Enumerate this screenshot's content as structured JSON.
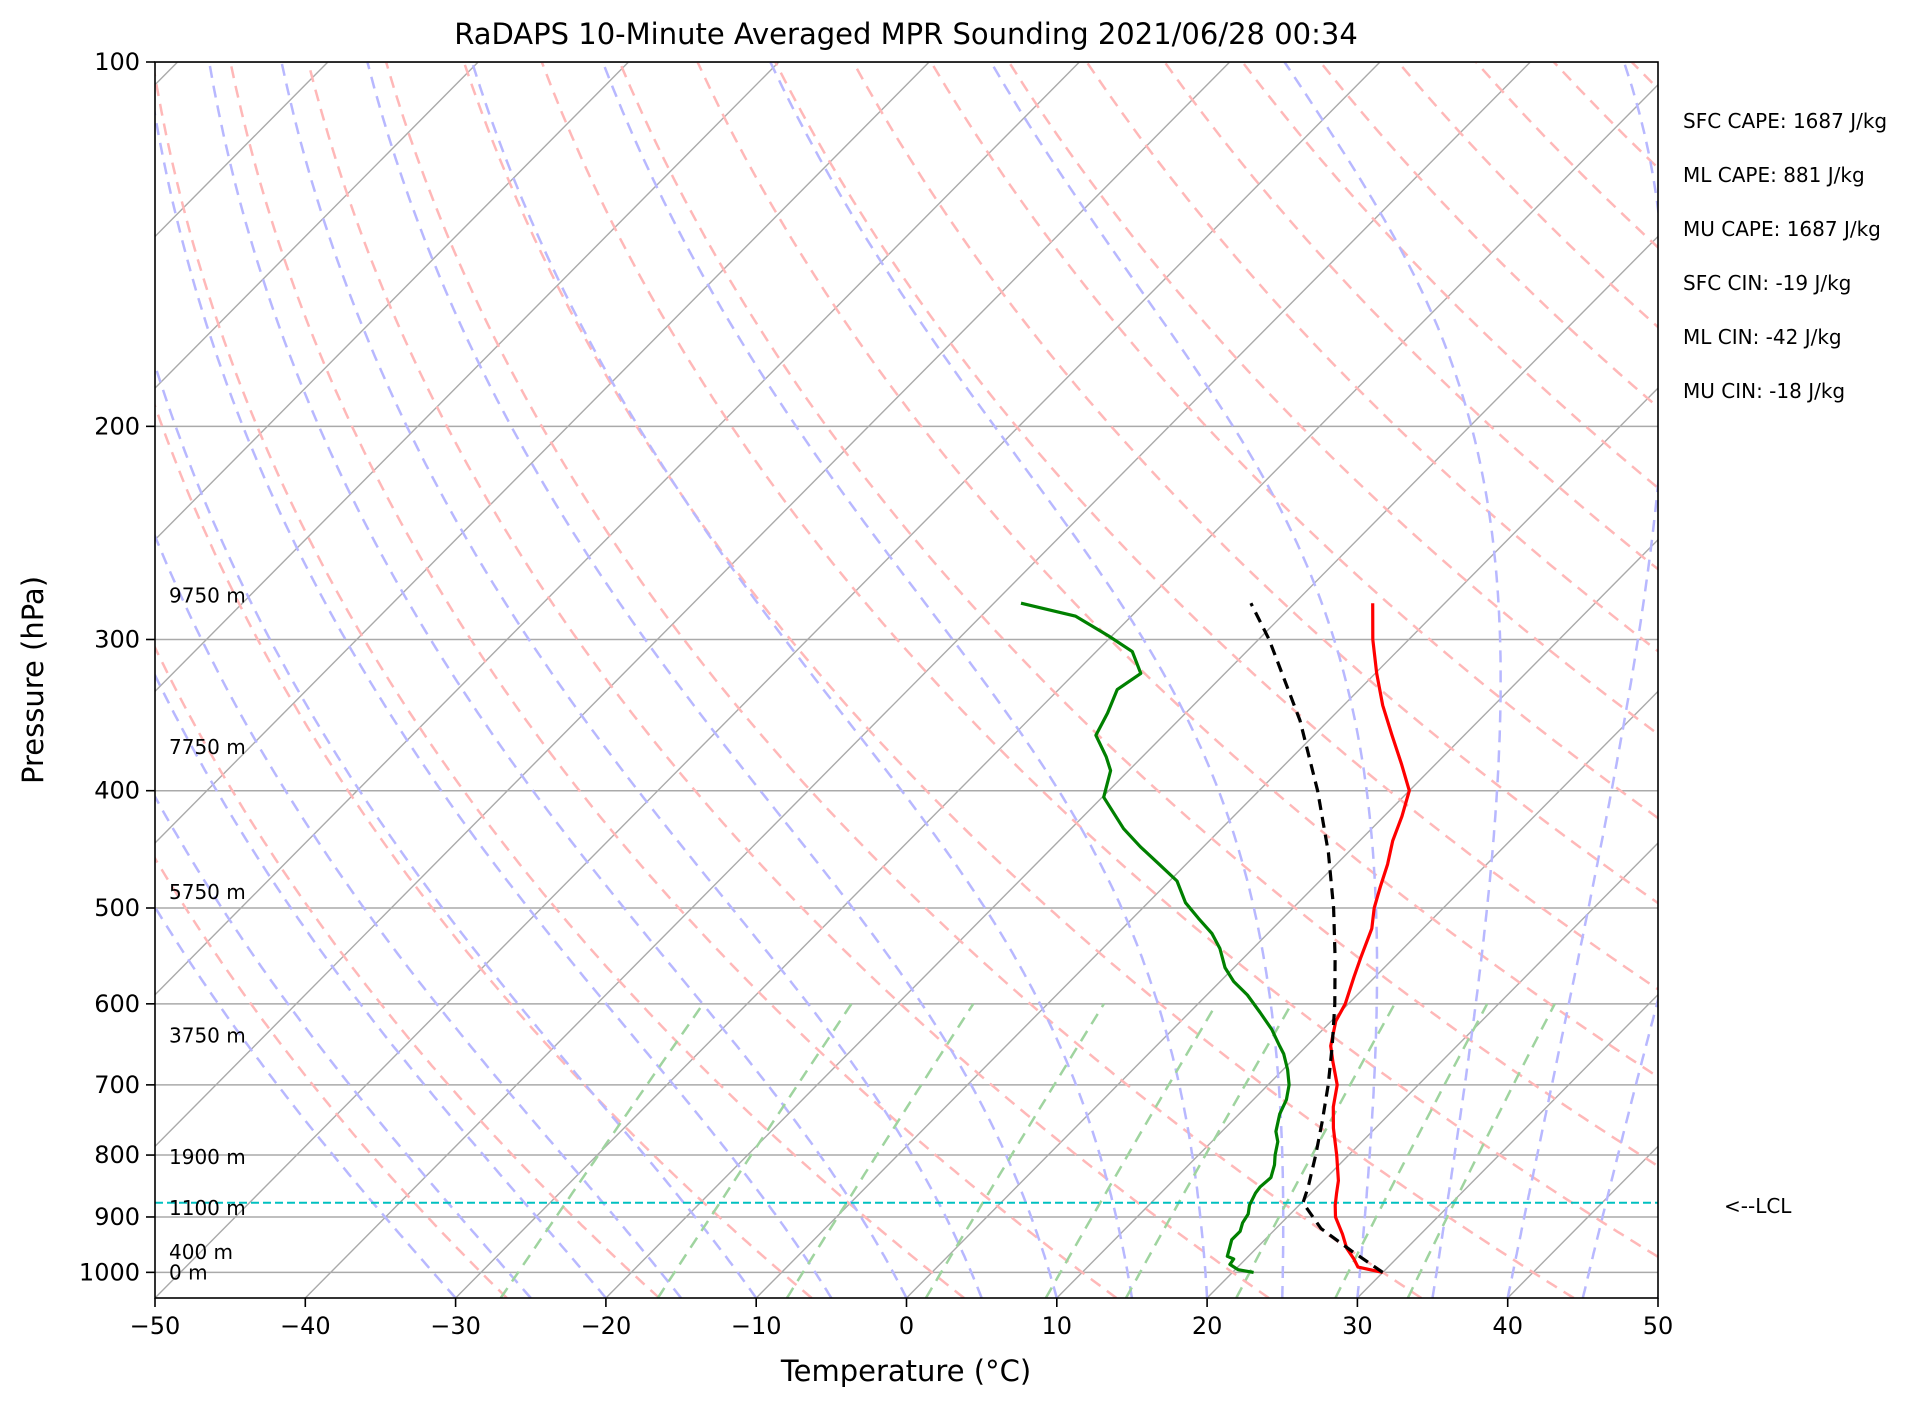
{
  "chart_data": {
    "type": "skew-t",
    "title": "RaDAPS 10-Minute Averaged MPR Sounding 2021/06/28 00:34",
    "xlabel": "Temperature (°C)",
    "ylabel": "Pressure (hPa)",
    "xlim": [
      -50,
      50
    ],
    "ylim": [
      1050,
      100
    ],
    "y_scale": "log",
    "grid": true,
    "x_ticks": [
      -50,
      -40,
      -30,
      -20,
      -10,
      0,
      10,
      20,
      30,
      40,
      50
    ],
    "x_tick_labels": [
      "−50",
      "−40",
      "−30",
      "−20",
      "−10",
      "0",
      "10",
      "20",
      "30",
      "40",
      "50"
    ],
    "y_ticks": [
      1000,
      900,
      800,
      700,
      600,
      500,
      400,
      300,
      200,
      100
    ],
    "y_tick_labels": [
      "1000",
      "900",
      "800",
      "700",
      "600",
      "500",
      "400",
      "300",
      "200",
      "100"
    ],
    "height_labels": [
      {
        "text": "0 m",
        "p": 1000
      },
      {
        "text": "400 m",
        "p": 962
      },
      {
        "text": "1100 m",
        "p": 885
      },
      {
        "text": "1900 m",
        "p": 803
      },
      {
        "text": "3750 m",
        "p": 637
      },
      {
        "text": "5750 m",
        "p": 485
      },
      {
        "text": "7750 m",
        "p": 368
      },
      {
        "text": "9750 m",
        "p": 276
      }
    ],
    "stats": [
      "SFC CAPE: 1687 J/kg",
      "ML CAPE: 881 J/kg",
      "MU CAPE: 1687 J/kg",
      "SFC CIN: -19 J/kg",
      "ML CIN: -42 J/kg",
      "MU CIN: -18 J/kg"
    ],
    "lcl": {
      "label": "<--LCL",
      "p": 876
    },
    "series": [
      {
        "color": "#ff0000",
        "points": [
          [
            1000,
            30
          ],
          [
            990,
            28
          ],
          [
            975,
            27.2
          ],
          [
            955,
            26
          ],
          [
            930,
            24.8
          ],
          [
            900,
            23.2
          ],
          [
            880,
            22.4
          ],
          [
            860,
            21.7
          ],
          [
            840,
            21
          ],
          [
            800,
            19.2
          ],
          [
            760,
            17.2
          ],
          [
            730,
            15.8
          ],
          [
            700,
            14.6
          ],
          [
            670,
            12.8
          ],
          [
            650,
            11.6
          ],
          [
            620,
            10.3
          ],
          [
            600,
            9.8
          ],
          [
            570,
            8.6
          ],
          [
            550,
            7.8
          ],
          [
            520,
            6.6
          ],
          [
            500,
            5.4
          ],
          [
            480,
            4.4
          ],
          [
            460,
            3.4
          ],
          [
            440,
            2.2
          ],
          [
            420,
            1.2
          ],
          [
            400,
            0
          ],
          [
            380,
            -2.3
          ],
          [
            360,
            -4.8
          ],
          [
            340,
            -7.4
          ],
          [
            320,
            -9.9
          ],
          [
            300,
            -12.4
          ],
          [
            280,
            -14.8
          ]
        ]
      },
      {
        "color": "#008000",
        "points": [
          [
            1000,
            21.4
          ],
          [
            995,
            20.2
          ],
          [
            985,
            19.3
          ],
          [
            975,
            19.2
          ],
          [
            970,
            18.6
          ],
          [
            955,
            18.2
          ],
          [
            940,
            17.8
          ],
          [
            925,
            17.8
          ],
          [
            910,
            17.4
          ],
          [
            895,
            17.2
          ],
          [
            880,
            16.7
          ],
          [
            860,
            16.3
          ],
          [
            850,
            16.2
          ],
          [
            835,
            16.3
          ],
          [
            815,
            15.7
          ],
          [
            800,
            15.1
          ],
          [
            780,
            14.4
          ],
          [
            765,
            13.6
          ],
          [
            740,
            12.7
          ],
          [
            720,
            12.2
          ],
          [
            700,
            11.4
          ],
          [
            680,
            10.3
          ],
          [
            660,
            9.0
          ],
          [
            650,
            8.2
          ],
          [
            630,
            6.6
          ],
          [
            610,
            4.7
          ],
          [
            590,
            2.7
          ],
          [
            575,
            0.9
          ],
          [
            560,
            -0.6
          ],
          [
            540,
            -2.2
          ],
          [
            525,
            -3.7
          ],
          [
            510,
            -5.6
          ],
          [
            495,
            -7.5
          ],
          [
            475,
            -9.5
          ],
          [
            460,
            -11.8
          ],
          [
            445,
            -14.2
          ],
          [
            430,
            -16.5
          ],
          [
            405,
            -19.9
          ],
          [
            385,
            -21.2
          ],
          [
            375,
            -22.4
          ],
          [
            360,
            -24.5
          ],
          [
            345,
            -25.2
          ],
          [
            330,
            -26.1
          ],
          [
            320,
            -25.6
          ],
          [
            307,
            -27.6
          ],
          [
            298,
            -30.2
          ],
          [
            287,
            -33.7
          ],
          [
            280,
            -38.2
          ]
        ]
      },
      {
        "color": "#000000",
        "dashed": true,
        "points": [
          [
            1000,
            30
          ],
          [
            960,
            26.5
          ],
          [
            920,
            23
          ],
          [
            876,
            20.1
          ],
          [
            850,
            19.4
          ],
          [
            800,
            17.8
          ],
          [
            750,
            16
          ],
          [
            700,
            14
          ],
          [
            650,
            11.7
          ],
          [
            600,
            9.1
          ],
          [
            550,
            6.1
          ],
          [
            500,
            2.7
          ],
          [
            450,
            -1.3
          ],
          [
            400,
            -6.1
          ],
          [
            350,
            -11.9
          ],
          [
            300,
            -19.3
          ],
          [
            280,
            -22.9
          ]
        ]
      }
    ],
    "colors": {
      "isotherm": "#aaaaaa",
      "dry_adiabat": "#ffb8b8",
      "moist_adiabat": "#b8b8ff",
      "mixing_ratio": "#9fd49f",
      "lcl_line": "#00c0c0"
    }
  }
}
